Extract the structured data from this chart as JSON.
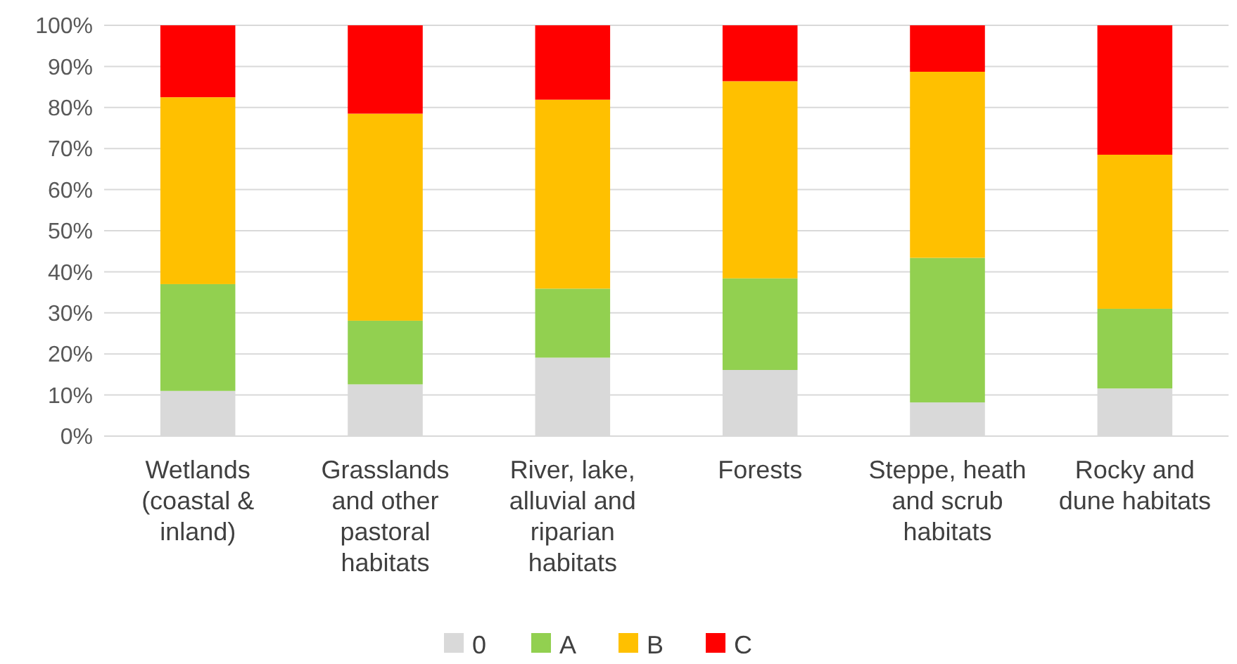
{
  "chart_data": {
    "type": "bar",
    "stacked": true,
    "categories": [
      "Wetlands (coastal & inland)",
      "Grasslands and other pastoral habitats",
      "River, lake, alluvial and riparian habitats",
      "Forests",
      "Steppe, heath and scrub habitats",
      "Rocky and dune habitats"
    ],
    "series": [
      {
        "name": "0",
        "color": "#d9d9d9",
        "values": [
          11,
          12.6,
          19.1,
          16.1,
          8.2,
          11.6
        ]
      },
      {
        "name": "A",
        "color": "#92d050",
        "values": [
          26,
          15.5,
          16.8,
          22.3,
          35.2,
          19.4
        ]
      },
      {
        "name": "B",
        "color": "#ffc000",
        "values": [
          45.5,
          50.4,
          46,
          48,
          45.3,
          37.5
        ]
      },
      {
        "name": "C",
        "color": "#ff0000",
        "values": [
          17.5,
          21.5,
          18.1,
          13.6,
          11.3,
          31.5
        ]
      }
    ],
    "ylim": [
      0,
      100
    ],
    "yticks": [
      {
        "value": 0,
        "label": "0%"
      },
      {
        "value": 10,
        "label": "10%"
      },
      {
        "value": 20,
        "label": "20%"
      },
      {
        "value": 30,
        "label": "30%"
      },
      {
        "value": 40,
        "label": "40%"
      },
      {
        "value": 50,
        "label": "50%"
      },
      {
        "value": 60,
        "label": "60%"
      },
      {
        "value": 70,
        "label": "70%"
      },
      {
        "value": 80,
        "label": "80%"
      },
      {
        "value": 90,
        "label": "90%"
      },
      {
        "value": 100,
        "label": "100%"
      }
    ],
    "grid": "y",
    "legend": "bottom"
  }
}
